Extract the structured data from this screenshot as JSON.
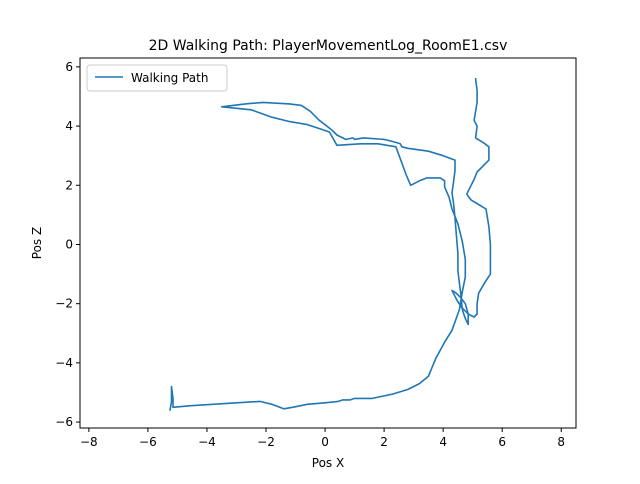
{
  "chart_data": {
    "type": "line",
    "title": "2D Walking Path: PlayerMovementLog_RoomE1.csv",
    "xlabel": "Pos X",
    "ylabel": "Pos Z",
    "xlim": [
      -8.3,
      8.5
    ],
    "ylim": [
      -6.2,
      6.3
    ],
    "xticks": [
      -8,
      -6,
      -4,
      -2,
      0,
      2,
      4,
      6,
      8
    ],
    "yticks": [
      -6,
      -4,
      -2,
      0,
      2,
      4,
      6
    ],
    "grid": false,
    "legend": "top-left",
    "series": [
      {
        "name": "Walking Path",
        "color": "#1f77b4",
        "points": [
          [
            5.1,
            5.6
          ],
          [
            5.15,
            5.2
          ],
          [
            5.15,
            4.8
          ],
          [
            5.05,
            4.2
          ],
          [
            5.15,
            4.0
          ],
          [
            5.1,
            3.6
          ],
          [
            5.35,
            3.45
          ],
          [
            5.55,
            3.3
          ],
          [
            5.55,
            2.85
          ],
          [
            5.4,
            2.7
          ],
          [
            5.15,
            2.45
          ],
          [
            5.05,
            2.2
          ],
          [
            4.85,
            1.8
          ],
          [
            4.8,
            1.7
          ],
          [
            4.95,
            1.5
          ],
          [
            5.2,
            1.35
          ],
          [
            5.45,
            1.2
          ],
          [
            5.55,
            0.6
          ],
          [
            5.6,
            0.0
          ],
          [
            5.6,
            -1.0
          ],
          [
            5.4,
            -1.3
          ],
          [
            5.2,
            -1.65
          ],
          [
            5.15,
            -2.0
          ],
          [
            5.15,
            -2.35
          ],
          [
            5.05,
            -2.45
          ],
          [
            4.85,
            -2.35
          ],
          [
            4.6,
            -2.1
          ],
          [
            4.45,
            -1.85
          ],
          [
            4.3,
            -1.55
          ],
          [
            4.45,
            -1.65
          ],
          [
            4.6,
            -1.8
          ],
          [
            4.75,
            -2.0
          ],
          [
            4.85,
            -2.35
          ],
          [
            4.85,
            -2.7
          ],
          [
            4.75,
            -2.5
          ],
          [
            4.65,
            -2.2
          ],
          [
            4.6,
            -1.7
          ],
          [
            4.5,
            -0.9
          ],
          [
            4.5,
            -0.3
          ],
          [
            4.45,
            0.3
          ],
          [
            4.4,
            0.9
          ],
          [
            4.35,
            1.4
          ],
          [
            4.3,
            1.75
          ],
          [
            4.35,
            2.1
          ],
          [
            4.4,
            2.5
          ],
          [
            4.4,
            2.85
          ],
          [
            4.0,
            3.0
          ],
          [
            3.5,
            3.15
          ],
          [
            2.8,
            3.25
          ],
          [
            2.6,
            3.3
          ],
          [
            2.55,
            3.4
          ],
          [
            2.4,
            3.45
          ],
          [
            2.0,
            3.55
          ],
          [
            1.3,
            3.6
          ],
          [
            1.0,
            3.55
          ],
          [
            0.95,
            3.6
          ],
          [
            0.7,
            3.55
          ],
          [
            0.4,
            3.7
          ],
          [
            0.25,
            3.85
          ],
          [
            0.0,
            4.05
          ],
          [
            -0.2,
            4.2
          ],
          [
            -0.5,
            4.5
          ],
          [
            -0.8,
            4.7
          ],
          [
            -1.2,
            4.75
          ],
          [
            -2.1,
            4.8
          ],
          [
            -2.7,
            4.75
          ],
          [
            -3.5,
            4.65
          ],
          [
            -3.0,
            4.6
          ],
          [
            -2.5,
            4.55
          ],
          [
            -1.8,
            4.3
          ],
          [
            -1.2,
            4.15
          ],
          [
            -0.6,
            4.05
          ],
          [
            -0.15,
            3.9
          ],
          [
            0.15,
            3.8
          ],
          [
            0.4,
            3.35
          ],
          [
            1.2,
            3.4
          ],
          [
            1.8,
            3.4
          ],
          [
            2.4,
            3.3
          ],
          [
            2.75,
            2.35
          ],
          [
            2.9,
            2.0
          ],
          [
            3.2,
            2.15
          ],
          [
            3.45,
            2.25
          ],
          [
            3.9,
            2.25
          ],
          [
            4.05,
            2.15
          ],
          [
            4.05,
            1.95
          ],
          [
            4.2,
            1.6
          ],
          [
            4.3,
            1.2
          ],
          [
            4.5,
            0.7
          ],
          [
            4.65,
            0.1
          ],
          [
            4.75,
            -0.5
          ],
          [
            4.75,
            -1.1
          ],
          [
            4.65,
            -1.6
          ],
          [
            4.55,
            -2.2
          ],
          [
            4.3,
            -2.9
          ],
          [
            4.05,
            -3.3
          ],
          [
            3.75,
            -3.85
          ],
          [
            3.5,
            -4.45
          ],
          [
            3.2,
            -4.7
          ],
          [
            2.8,
            -4.9
          ],
          [
            2.3,
            -5.05
          ],
          [
            1.6,
            -5.2
          ],
          [
            1.0,
            -5.2
          ],
          [
            0.85,
            -5.25
          ],
          [
            0.6,
            -5.25
          ],
          [
            0.45,
            -5.3
          ],
          [
            0.0,
            -5.35
          ],
          [
            -0.6,
            -5.4
          ],
          [
            -1.1,
            -5.5
          ],
          [
            -1.4,
            -5.55
          ],
          [
            -1.8,
            -5.4
          ],
          [
            -2.2,
            -5.3
          ],
          [
            -3.0,
            -5.35
          ],
          [
            -3.8,
            -5.4
          ],
          [
            -4.6,
            -5.45
          ],
          [
            -5.15,
            -5.5
          ],
          [
            -5.15,
            -5.2
          ],
          [
            -5.2,
            -4.8
          ],
          [
            -5.2,
            -5.3
          ],
          [
            -5.25,
            -5.6
          ]
        ]
      }
    ]
  }
}
